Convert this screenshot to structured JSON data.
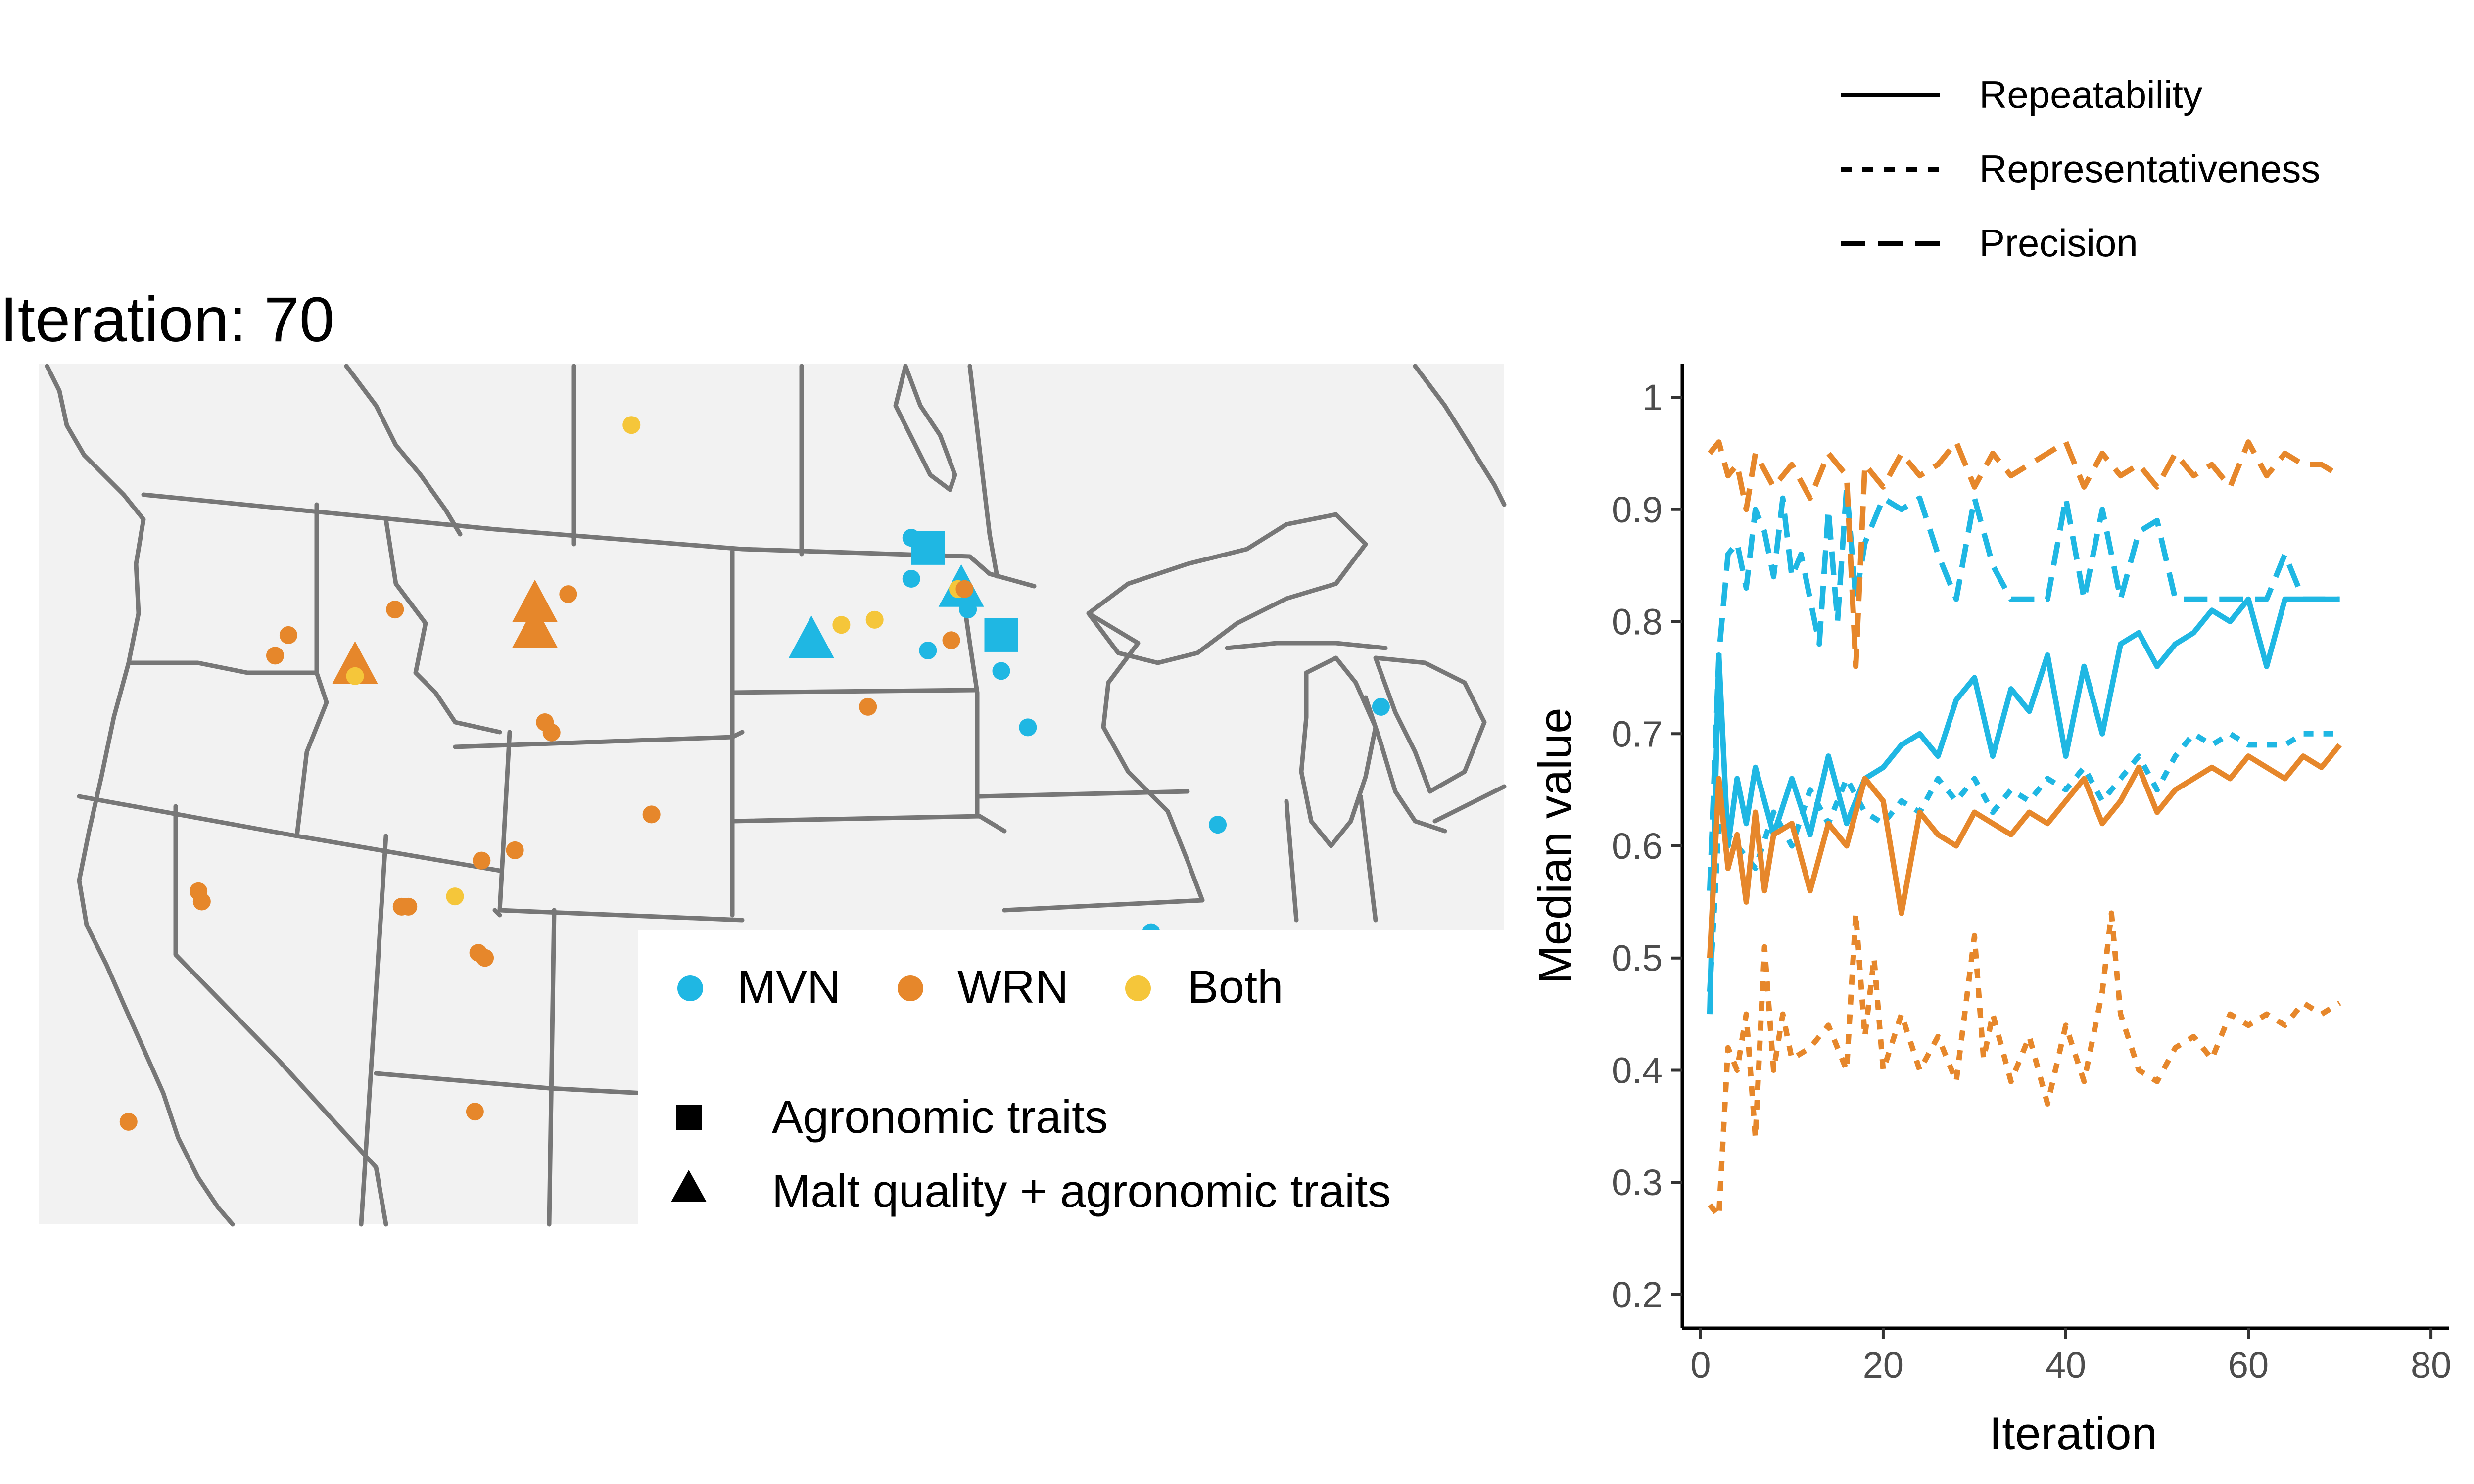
{
  "iteration_title": "Iteration: 70",
  "map": {
    "legend": {
      "colors": [
        {
          "label": "MVN",
          "color": "#1fb7e3"
        },
        {
          "label": "WRN",
          "color": "#e6872b"
        },
        {
          "label": "Both",
          "color": "#f5c63a"
        }
      ],
      "shapes": [
        {
          "label": "Agronomic traits",
          "shape": "square"
        },
        {
          "label": "Malt quality + agronomic traits",
          "shape": "triangle"
        }
      ]
    },
    "sites": [
      {
        "group": "Both",
        "shape": "circle",
        "lon": -106.7,
        "lat": 52.1
      },
      {
        "group": "MVN",
        "shape": "circle",
        "lon": -98.3,
        "lat": 49.9
      },
      {
        "group": "MVN",
        "shape": "square",
        "lon": -97.8,
        "lat": 49.7
      },
      {
        "group": "MVN",
        "shape": "circle",
        "lon": -98.3,
        "lat": 49.1
      },
      {
        "group": "MVN",
        "shape": "triangle",
        "lon": -96.8,
        "lat": 48.9
      },
      {
        "group": "Both",
        "shape": "circle",
        "lon": -96.9,
        "lat": 48.9
      },
      {
        "group": "MVN",
        "shape": "circle",
        "lon": -96.6,
        "lat": 48.5
      },
      {
        "group": "WRN",
        "shape": "circle",
        "lon": -96.7,
        "lat": 48.9
      },
      {
        "group": "MVN",
        "shape": "square",
        "lon": -95.6,
        "lat": 48.0
      },
      {
        "group": "MVN",
        "shape": "triangle",
        "lon": -101.3,
        "lat": 47.9
      },
      {
        "group": "Both",
        "shape": "circle",
        "lon": -100.4,
        "lat": 48.2
      },
      {
        "group": "Both",
        "shape": "circle",
        "lon": -99.4,
        "lat": 48.3
      },
      {
        "group": "MVN",
        "shape": "circle",
        "lon": -97.8,
        "lat": 47.7
      },
      {
        "group": "WRN",
        "shape": "circle",
        "lon": -97.1,
        "lat": 47.9
      },
      {
        "group": "MVN",
        "shape": "circle",
        "lon": -95.6,
        "lat": 47.3
      },
      {
        "group": "WRN",
        "shape": "circle",
        "lon": -99.6,
        "lat": 46.6
      },
      {
        "group": "MVN",
        "shape": "circle",
        "lon": -94.8,
        "lat": 46.2
      },
      {
        "group": "MVN",
        "shape": "circle",
        "lon": -84.2,
        "lat": 46.6
      },
      {
        "group": "MVN",
        "shape": "circle",
        "lon": -89.1,
        "lat": 44.3
      },
      {
        "group": "MVN",
        "shape": "circle",
        "lon": -91.1,
        "lat": 42.2
      },
      {
        "group": "WRN",
        "shape": "circle",
        "lon": -117.0,
        "lat": 48.0
      },
      {
        "group": "WRN",
        "shape": "circle",
        "lon": -117.4,
        "lat": 47.6
      },
      {
        "group": "WRN",
        "shape": "triangle",
        "lon": -115.0,
        "lat": 47.4
      },
      {
        "group": "Both",
        "shape": "circle",
        "lon": -115.0,
        "lat": 47.2
      },
      {
        "group": "WRN",
        "shape": "circle",
        "lon": -113.8,
        "lat": 48.5
      },
      {
        "group": "WRN",
        "shape": "triangle",
        "lon": -109.6,
        "lat": 48.6
      },
      {
        "group": "WRN",
        "shape": "triangle",
        "lon": -109.6,
        "lat": 48.1
      },
      {
        "group": "WRN",
        "shape": "circle",
        "lon": -108.6,
        "lat": 48.8
      },
      {
        "group": "WRN",
        "shape": "circle",
        "lon": -109.3,
        "lat": 46.3
      },
      {
        "group": "WRN",
        "shape": "circle",
        "lon": -109.1,
        "lat": 46.1
      },
      {
        "group": "WRN",
        "shape": "circle",
        "lon": -106.1,
        "lat": 44.5
      },
      {
        "group": "WRN",
        "shape": "circle",
        "lon": -119.7,
        "lat": 43.0
      },
      {
        "group": "WRN",
        "shape": "circle",
        "lon": -119.6,
        "lat": 42.8
      },
      {
        "group": "WRN",
        "shape": "circle",
        "lon": -111.2,
        "lat": 43.6
      },
      {
        "group": "WRN",
        "shape": "circle",
        "lon": -110.2,
        "lat": 43.8
      },
      {
        "group": "Both",
        "shape": "circle",
        "lon": -112.0,
        "lat": 42.9
      },
      {
        "group": "WRN",
        "shape": "circle",
        "lon": -113.6,
        "lat": 42.7
      },
      {
        "group": "WRN",
        "shape": "circle",
        "lon": -113.4,
        "lat": 42.7
      },
      {
        "group": "WRN",
        "shape": "circle",
        "lon": -111.3,
        "lat": 41.8
      },
      {
        "group": "WRN",
        "shape": "circle",
        "lon": -111.1,
        "lat": 41.7
      },
      {
        "group": "WRN",
        "shape": "circle",
        "lon": -121.8,
        "lat": 38.5
      },
      {
        "group": "WRN",
        "shape": "circle",
        "lon": -111.4,
        "lat": 38.7
      }
    ]
  },
  "chart_data": {
    "type": "line",
    "xlabel": "Iteration",
    "ylabel": "Median value",
    "xlim": [
      -2,
      82
    ],
    "ylim": [
      0.17,
      1.03
    ],
    "x_ticks": [
      0,
      20,
      40,
      60,
      80
    ],
    "y_ticks": [
      0.2,
      0.3,
      0.4,
      0.5,
      0.6,
      0.7,
      0.8,
      0.9,
      1
    ],
    "y_tick_labels": [
      "0.2",
      "0.3",
      "0.4",
      "0.5",
      "0.6",
      "0.7",
      "0.8",
      "0.9",
      "1"
    ],
    "grid": false,
    "legend_position": "top-right",
    "legend": [
      {
        "label": "Repeatability",
        "dash": "solid"
      },
      {
        "label": "Representativeness",
        "dash": "dotted"
      },
      {
        "label": "Precision",
        "dash": "dashed"
      }
    ],
    "series": [
      {
        "group": "MVN",
        "metric": "Repeatability",
        "color": "#1fb7e3",
        "x": [
          1,
          2,
          3,
          4,
          5,
          6,
          8,
          10,
          12,
          14,
          16,
          18,
          20,
          22,
          24,
          26,
          28,
          30,
          32,
          34,
          36,
          38,
          40,
          42,
          44,
          46,
          48,
          50,
          52,
          54,
          56,
          58,
          60,
          62,
          64,
          66,
          68,
          70
        ],
        "y": [
          0.45,
          0.77,
          0.6,
          0.66,
          0.62,
          0.67,
          0.61,
          0.66,
          0.61,
          0.68,
          0.62,
          0.66,
          0.67,
          0.69,
          0.7,
          0.68,
          0.73,
          0.75,
          0.68,
          0.74,
          0.72,
          0.77,
          0.68,
          0.76,
          0.7,
          0.78,
          0.79,
          0.76,
          0.78,
          0.79,
          0.81,
          0.8,
          0.82,
          0.76,
          0.82,
          0.82,
          0.82,
          0.82
        ]
      },
      {
        "group": "MVN",
        "metric": "Representativeness",
        "color": "#1fb7e3",
        "x": [
          1,
          2,
          4,
          6,
          8,
          10,
          12,
          14,
          16,
          18,
          20,
          22,
          24,
          26,
          28,
          30,
          32,
          34,
          36,
          38,
          40,
          42,
          44,
          46,
          48,
          50,
          52,
          54,
          56,
          58,
          60,
          62,
          64,
          66,
          68,
          70
        ],
        "y": [
          0.47,
          0.62,
          0.6,
          0.58,
          0.63,
          0.6,
          0.65,
          0.62,
          0.66,
          0.63,
          0.62,
          0.64,
          0.63,
          0.66,
          0.64,
          0.66,
          0.63,
          0.65,
          0.64,
          0.66,
          0.65,
          0.67,
          0.64,
          0.66,
          0.68,
          0.65,
          0.68,
          0.7,
          0.69,
          0.7,
          0.69,
          0.69,
          0.69,
          0.7,
          0.7,
          0.7
        ]
      },
      {
        "group": "MVN",
        "metric": "Precision",
        "color": "#1fb7e3",
        "x": [
          1,
          2,
          3,
          4,
          5,
          6,
          7,
          8,
          9,
          10,
          11,
          12,
          13,
          14,
          15,
          16,
          17,
          18,
          20,
          22,
          24,
          26,
          28,
          30,
          32,
          34,
          36,
          38,
          40,
          42,
          44,
          46,
          48,
          50,
          52,
          54,
          56,
          58,
          60,
          62,
          64,
          66,
          68,
          70
        ],
        "y": [
          0.56,
          0.77,
          0.86,
          0.87,
          0.83,
          0.9,
          0.88,
          0.84,
          0.91,
          0.84,
          0.86,
          0.82,
          0.78,
          0.9,
          0.8,
          0.92,
          0.82,
          0.87,
          0.91,
          0.9,
          0.91,
          0.86,
          0.82,
          0.91,
          0.85,
          0.82,
          0.82,
          0.82,
          0.91,
          0.82,
          0.9,
          0.82,
          0.88,
          0.89,
          0.82,
          0.82,
          0.82,
          0.82,
          0.82,
          0.82,
          0.86,
          0.82,
          0.82,
          0.82
        ]
      },
      {
        "group": "WRN",
        "metric": "Repeatability",
        "color": "#e6872b",
        "x": [
          1,
          2,
          3,
          4,
          5,
          6,
          7,
          8,
          10,
          12,
          14,
          16,
          18,
          20,
          22,
          24,
          26,
          28,
          30,
          32,
          34,
          36,
          38,
          40,
          42,
          44,
          46,
          48,
          50,
          52,
          54,
          56,
          58,
          60,
          62,
          64,
          66,
          68,
          70
        ],
        "y": [
          0.5,
          0.66,
          0.58,
          0.61,
          0.55,
          0.63,
          0.56,
          0.61,
          0.62,
          0.56,
          0.62,
          0.6,
          0.66,
          0.64,
          0.54,
          0.63,
          0.61,
          0.6,
          0.63,
          0.62,
          0.61,
          0.63,
          0.62,
          0.64,
          0.66,
          0.62,
          0.64,
          0.67,
          0.63,
          0.65,
          0.66,
          0.67,
          0.66,
          0.68,
          0.67,
          0.66,
          0.68,
          0.67,
          0.69
        ]
      },
      {
        "group": "WRN",
        "metric": "Representativeness",
        "color": "#e6872b",
        "x": [
          1,
          2,
          3,
          4,
          5,
          6,
          7,
          8,
          9,
          10,
          12,
          14,
          16,
          17,
          18,
          19,
          20,
          22,
          24,
          26,
          28,
          30,
          31,
          32,
          34,
          36,
          38,
          40,
          42,
          44,
          45,
          46,
          48,
          50,
          52,
          54,
          56,
          58,
          60,
          62,
          64,
          66,
          68,
          70
        ],
        "y": [
          0.28,
          0.27,
          0.42,
          0.4,
          0.45,
          0.34,
          0.51,
          0.4,
          0.45,
          0.41,
          0.42,
          0.44,
          0.4,
          0.54,
          0.43,
          0.5,
          0.4,
          0.45,
          0.4,
          0.43,
          0.39,
          0.52,
          0.41,
          0.45,
          0.39,
          0.43,
          0.37,
          0.44,
          0.39,
          0.47,
          0.54,
          0.45,
          0.4,
          0.39,
          0.42,
          0.43,
          0.41,
          0.45,
          0.44,
          0.45,
          0.44,
          0.46,
          0.45,
          0.46
        ]
      },
      {
        "group": "WRN",
        "metric": "Precision",
        "color": "#e6872b",
        "x": [
          1,
          2,
          3,
          4,
          5,
          6,
          8,
          10,
          12,
          14,
          16,
          17,
          18,
          20,
          22,
          24,
          26,
          28,
          30,
          32,
          34,
          36,
          38,
          40,
          42,
          44,
          46,
          48,
          50,
          52,
          54,
          56,
          58,
          60,
          62,
          64,
          66,
          68,
          70
        ],
        "y": [
          0.95,
          0.96,
          0.93,
          0.94,
          0.9,
          0.95,
          0.92,
          0.94,
          0.91,
          0.95,
          0.93,
          0.76,
          0.94,
          0.92,
          0.95,
          0.93,
          0.94,
          0.96,
          0.92,
          0.95,
          0.93,
          0.94,
          0.95,
          0.96,
          0.92,
          0.95,
          0.93,
          0.94,
          0.92,
          0.95,
          0.93,
          0.94,
          0.92,
          0.96,
          0.93,
          0.95,
          0.94,
          0.94,
          0.93
        ]
      }
    ]
  }
}
